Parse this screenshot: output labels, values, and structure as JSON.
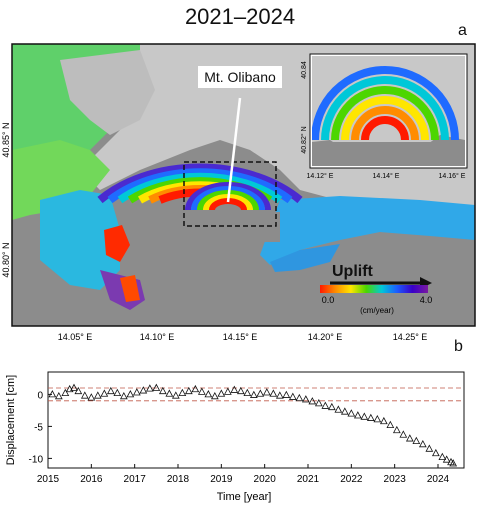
{
  "title": "2021–2024",
  "panel_a_label": "a",
  "panel_b_label": "b",
  "map": {
    "annotation": "Mt. Olibano",
    "uplift_label": "Uplift",
    "colorbar": {
      "min_label": "0.0",
      "max_label": "4.0",
      "unit_label": "(cm/year)",
      "colors": [
        "#ff1a00",
        "#ff8c00",
        "#ffe600",
        "#4cd600",
        "#00c8d8",
        "#1c5bff",
        "#3a00c8",
        "#7a1aa0"
      ]
    },
    "x_ticks": [
      "14.05° E",
      "14.10° E",
      "14.15° E",
      "14.20° E",
      "14.25° E"
    ],
    "y_ticks": [
      "40.85° N",
      "40.80° N"
    ],
    "inset": {
      "x_ticks": [
        "14.12° E",
        "14.14° E",
        "14.16° E"
      ],
      "y_ticks": [
        "40.84",
        "40.82° N"
      ]
    },
    "sea_color": "#8c8c8c",
    "land_color": "#c8c8c8"
  },
  "chart_data": {
    "type": "scatter",
    "xlabel": "Time [year]",
    "ylabel": "Displacement [cm]",
    "xlim": [
      2015,
      2024.6
    ],
    "ylim": [
      -11.5,
      3.5
    ],
    "x_ticks": [
      2015,
      2016,
      2017,
      2018,
      2019,
      2020,
      2021,
      2022,
      2023,
      2024
    ],
    "y_ticks": [
      0,
      -5,
      -10
    ],
    "reference_lines": [
      1,
      -1
    ],
    "series": [
      {
        "marker": "open-triangle",
        "points": [
          [
            2015.1,
            0.0
          ],
          [
            2015.25,
            -0.3
          ],
          [
            2015.4,
            0.2
          ],
          [
            2015.5,
            0.8
          ],
          [
            2015.6,
            1.0
          ],
          [
            2015.7,
            0.5
          ],
          [
            2015.85,
            -0.2
          ],
          [
            2016.0,
            -0.5
          ],
          [
            2016.15,
            -0.2
          ],
          [
            2016.3,
            0.1
          ],
          [
            2016.45,
            0.5
          ],
          [
            2016.6,
            0.2
          ],
          [
            2016.75,
            -0.3
          ],
          [
            2016.9,
            0.0
          ],
          [
            2017.05,
            0.3
          ],
          [
            2017.2,
            0.6
          ],
          [
            2017.35,
            0.9
          ],
          [
            2017.5,
            1.0
          ],
          [
            2017.65,
            0.5
          ],
          [
            2017.8,
            0.1
          ],
          [
            2017.95,
            -0.2
          ],
          [
            2018.1,
            0.2
          ],
          [
            2018.25,
            0.5
          ],
          [
            2018.4,
            0.8
          ],
          [
            2018.55,
            0.4
          ],
          [
            2018.7,
            0.0
          ],
          [
            2018.85,
            -0.3
          ],
          [
            2019.0,
            0.1
          ],
          [
            2019.15,
            0.4
          ],
          [
            2019.3,
            0.7
          ],
          [
            2019.45,
            0.5
          ],
          [
            2019.6,
            0.2
          ],
          [
            2019.75,
            -0.1
          ],
          [
            2019.9,
            0.1
          ],
          [
            2020.05,
            0.3
          ],
          [
            2020.2,
            0.1
          ],
          [
            2020.35,
            -0.2
          ],
          [
            2020.5,
            -0.1
          ],
          [
            2020.65,
            -0.4
          ],
          [
            2020.8,
            -0.6
          ],
          [
            2020.95,
            -0.8
          ],
          [
            2021.1,
            -1.1
          ],
          [
            2021.25,
            -1.4
          ],
          [
            2021.4,
            -1.8
          ],
          [
            2021.55,
            -2.0
          ],
          [
            2021.7,
            -2.4
          ],
          [
            2021.85,
            -2.7
          ],
          [
            2022.0,
            -3.0
          ],
          [
            2022.15,
            -3.3
          ],
          [
            2022.3,
            -3.5
          ],
          [
            2022.45,
            -3.7
          ],
          [
            2022.6,
            -3.9
          ],
          [
            2022.75,
            -4.2
          ],
          [
            2022.9,
            -4.8
          ],
          [
            2023.05,
            -5.6
          ],
          [
            2023.2,
            -6.3
          ],
          [
            2023.35,
            -6.9
          ],
          [
            2023.5,
            -7.3
          ],
          [
            2023.65,
            -7.8
          ],
          [
            2023.8,
            -8.5
          ],
          [
            2023.95,
            -9.2
          ],
          [
            2024.1,
            -9.8
          ],
          [
            2024.2,
            -10.2
          ],
          [
            2024.3,
            -10.6
          ],
          [
            2024.35,
            -10.8
          ]
        ]
      }
    ]
  }
}
